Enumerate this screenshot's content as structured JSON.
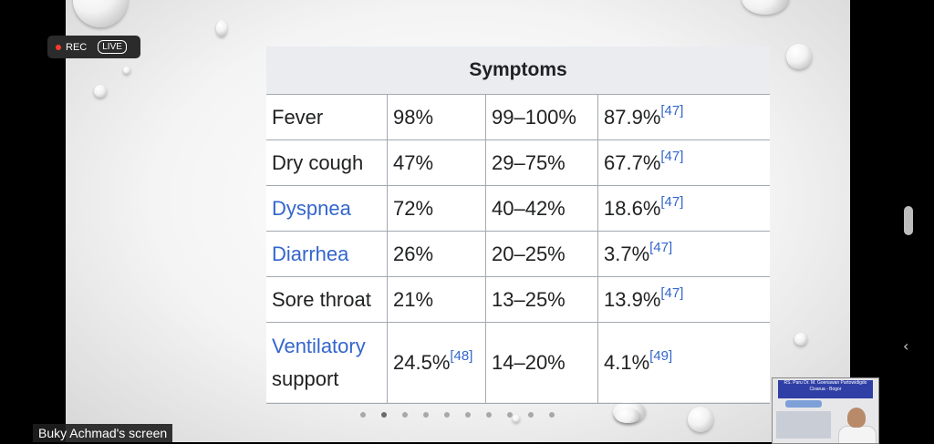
{
  "recording": {
    "rec_label": "REC",
    "live_label": "LIVE",
    "dot_color": "#ff3b30"
  },
  "table": {
    "header": "Symptoms",
    "rows": [
      {
        "name": "Fever",
        "is_link": false,
        "c1": "98%",
        "c1_ref": "",
        "c2": "99–100%",
        "c3": "87.9%",
        "c3_ref": "[47]"
      },
      {
        "name": "Dry cough",
        "is_link": false,
        "c1": "47%",
        "c1_ref": "",
        "c2": "29–75%",
        "c3": "67.7%",
        "c3_ref": "[47]"
      },
      {
        "name": "Dyspnea",
        "is_link": true,
        "c1": "72%",
        "c1_ref": "",
        "c2": "40–42%",
        "c3": "18.6%",
        "c3_ref": "[47]"
      },
      {
        "name": "Diarrhea",
        "is_link": true,
        "c1": "26%",
        "c1_ref": "",
        "c2": "20–25%",
        "c3": "3.7%",
        "c3_ref": "[47]"
      },
      {
        "name": "Sore throat",
        "is_link": false,
        "c1": "21%",
        "c1_ref": "",
        "c2": "13–25%",
        "c3": "13.9%",
        "c3_ref": "[47]"
      },
      {
        "name_line1": "Ventilatory",
        "name_line2": "support",
        "c1": "24.5%",
        "c1_ref": "[48]",
        "c2": "14–20%",
        "c3": "4.1%",
        "c3_ref": "[49]"
      }
    ],
    "link_color": "#3366cc"
  },
  "slideshow": {
    "dot_count": 10,
    "active_index": 1
  },
  "screen_share_label": "Buky Achmad's screen",
  "participant_video": {
    "banner_text": "RS. Paru Dr. M. Goenawan Partowidigdo Cisarua - Bogor"
  },
  "side_controls": {
    "collapse_icon": "chevron-left-icon",
    "handle_icon": "drag-handle-icon"
  }
}
